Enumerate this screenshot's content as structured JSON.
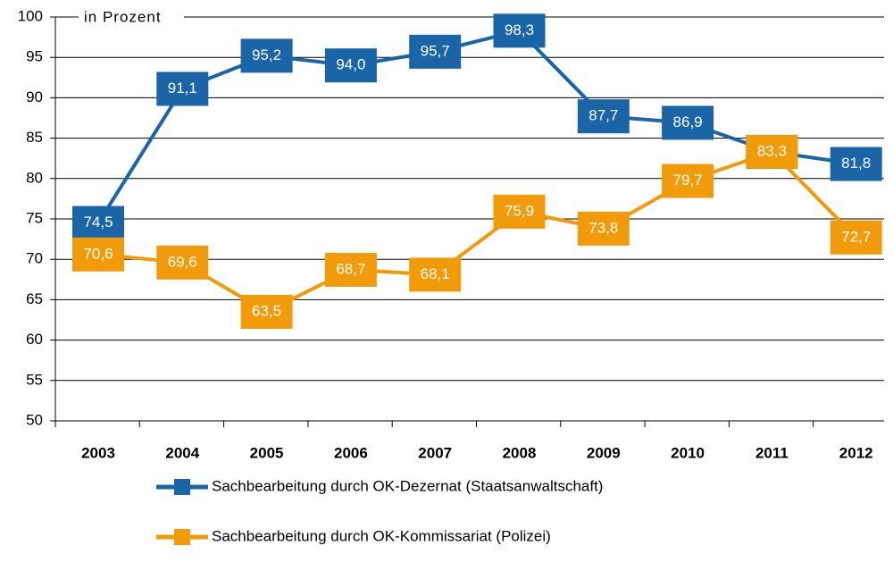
{
  "chart_data": {
    "type": "line",
    "annotation": "in Prozent",
    "categories": [
      "2003",
      "2004",
      "2005",
      "2006",
      "2007",
      "2008",
      "2009",
      "2010",
      "2011",
      "2012"
    ],
    "series": [
      {
        "name": "Sachbearbeitung durch OK-Dezernat (Staatsanwaltschaft)",
        "color": "#1a64a8",
        "values": [
          74.5,
          91.1,
          95.2,
          94.0,
          95.7,
          98.3,
          87.7,
          86.9,
          83.3,
          81.8
        ],
        "value_labels": [
          "74,5",
          "91,1",
          "95,2",
          "94,0",
          "95,7",
          "98,3",
          "87,7",
          "86,9",
          "83,3",
          "81,8"
        ]
      },
      {
        "name": "Sachbearbeitung durch OK-Kommissariat (Polizei)",
        "color": "#f29b0a",
        "values": [
          70.6,
          69.6,
          63.5,
          68.7,
          68.1,
          75.9,
          73.8,
          79.7,
          83.3,
          72.7
        ],
        "value_labels": [
          "70,6",
          "69,6",
          "63,5",
          "68,7",
          "68,1",
          "75,9",
          "73,8",
          "79,7",
          "83,3",
          "72,7"
        ]
      }
    ],
    "ylim": [
      50,
      100
    ],
    "yticks": [
      50,
      55,
      60,
      65,
      70,
      75,
      80,
      85,
      90,
      95,
      100
    ],
    "grid": true
  }
}
